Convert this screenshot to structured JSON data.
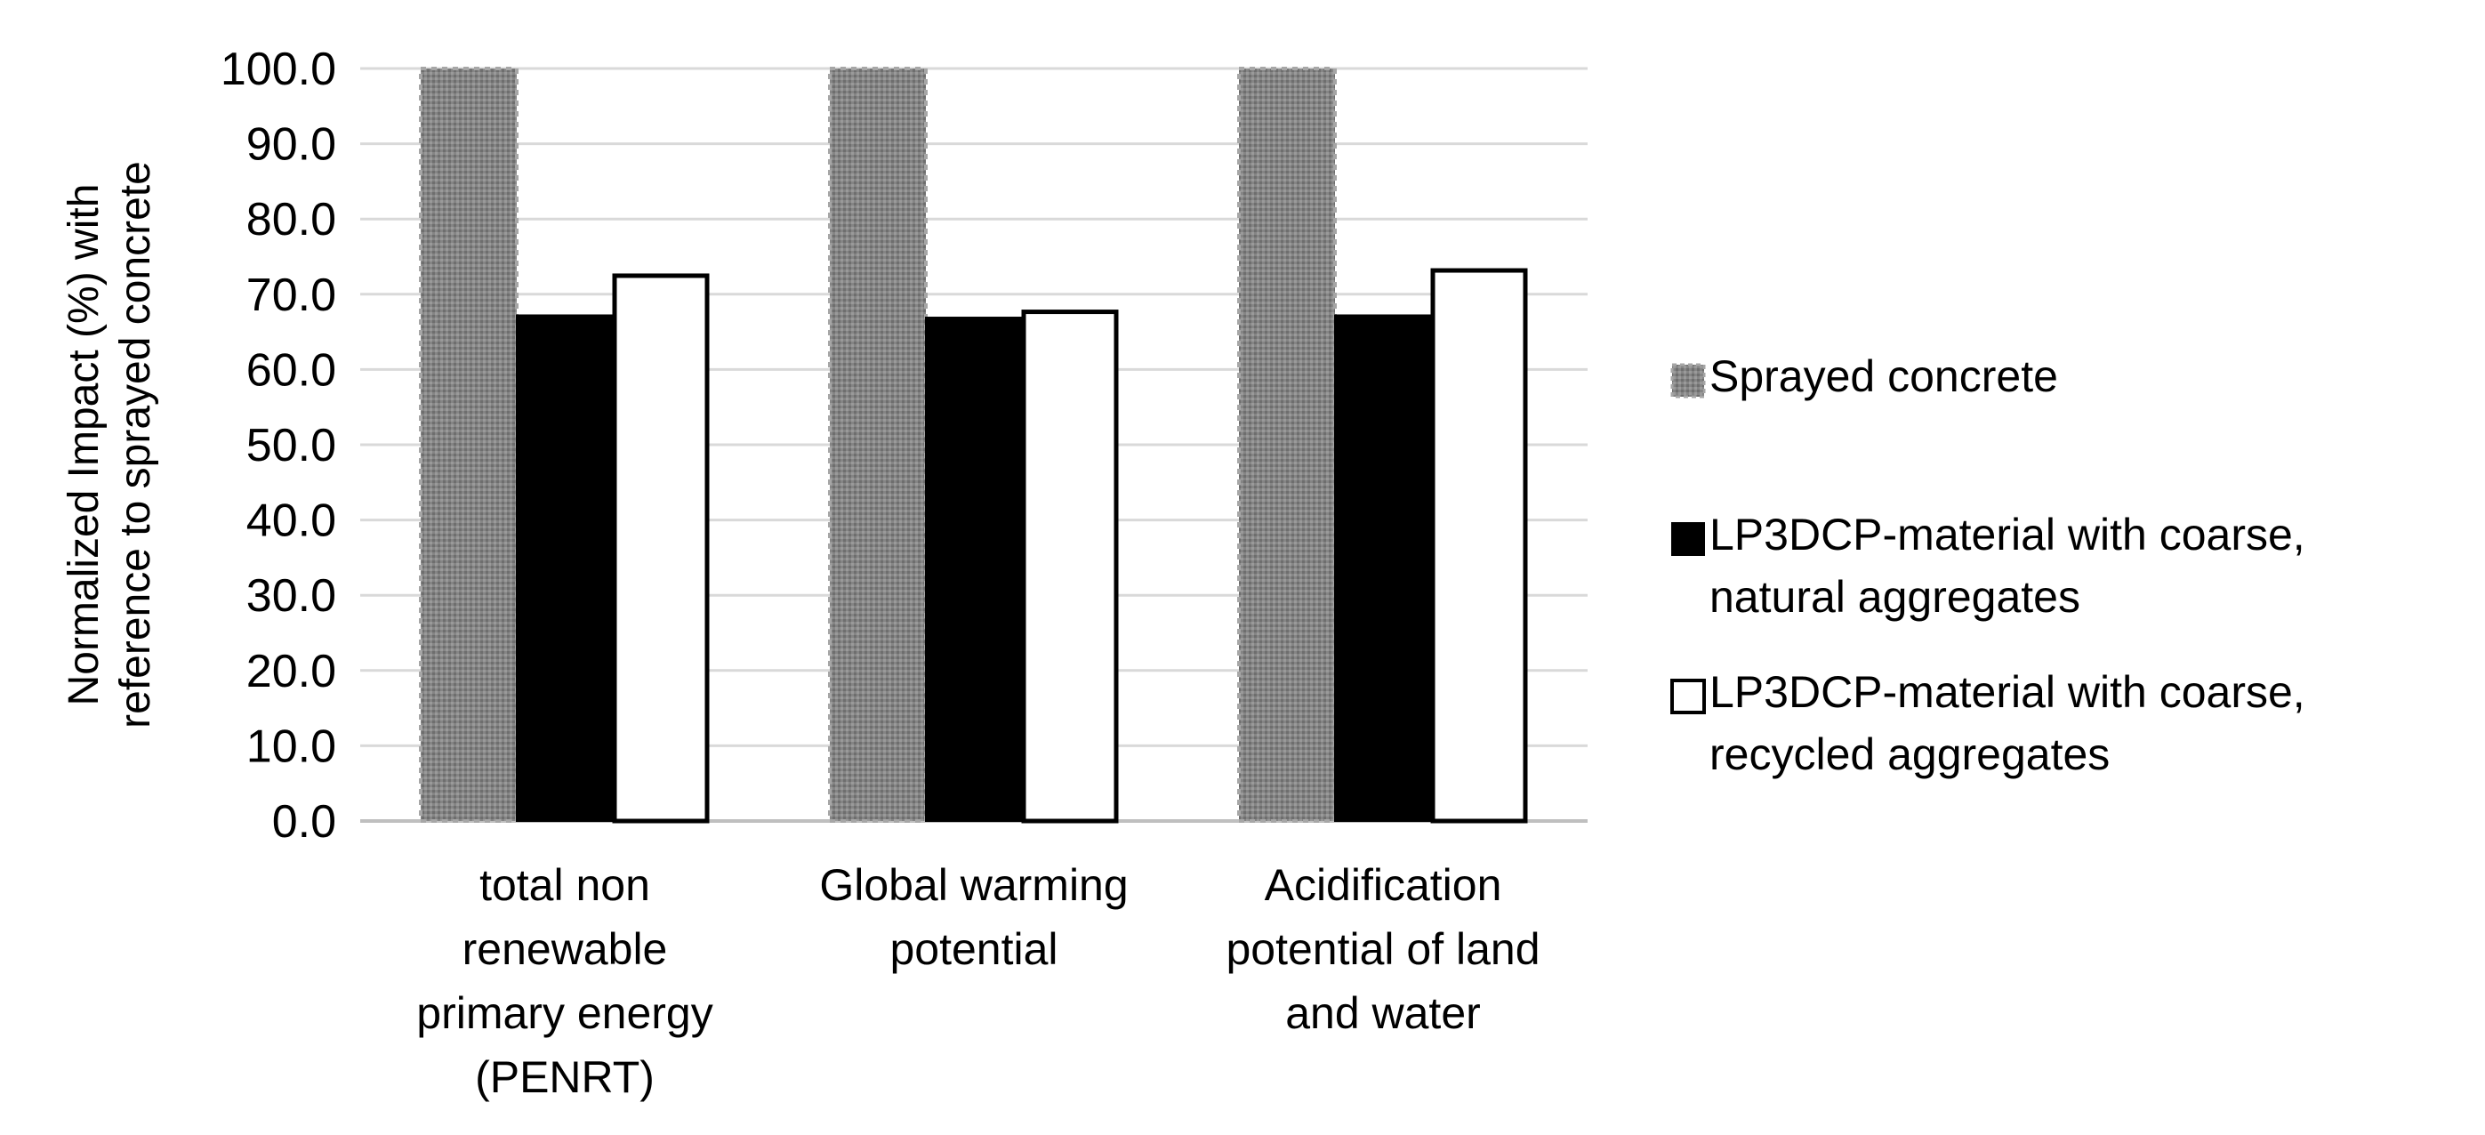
{
  "chart_data": {
    "type": "bar",
    "title": "",
    "xlabel": "",
    "ylabel_lines": [
      "Normalized Impact (%) with",
      "reference to sprayed concrete"
    ],
    "ylim": [
      0,
      100
    ],
    "yticks": [
      0,
      10,
      20,
      30,
      40,
      50,
      60,
      70,
      80,
      90,
      100
    ],
    "tick_labels": [
      "0.0",
      "10.0",
      "20.0",
      "30.0",
      "40.0",
      "50.0",
      "60.0",
      "70.0",
      "80.0",
      "90.0",
      "100.0"
    ],
    "grid": true,
    "legend_position": "right",
    "categories": [
      {
        "lines": [
          "total non",
          "renewable",
          "primary energy",
          "(PENRT)"
        ]
      },
      {
        "lines": [
          "Global warming",
          "potential"
        ]
      },
      {
        "lines": [
          "Acidification",
          "potential of land",
          "and water"
        ]
      }
    ],
    "series": [
      {
        "name": "Sprayed concrete",
        "legend_lines": [
          "Sprayed concrete"
        ],
        "values": [
          100.0,
          100.0,
          100.0
        ],
        "fill": "#808080",
        "stroke": "#a6a6a6",
        "pattern": "dotted-gray"
      },
      {
        "name": "LP3DCP-material with coarse, natural aggregates",
        "legend_lines": [
          "LP3DCP-material with coarse,",
          "natural aggregates"
        ],
        "values": [
          67.2,
          66.9,
          67.2
        ],
        "fill": "#000000",
        "stroke": "#000000",
        "pattern": "solid"
      },
      {
        "name": "LP3DCP-material with coarse, recycled aggregates",
        "legend_lines": [
          "LP3DCP-material with coarse,",
          "recycled aggregates"
        ],
        "values": [
          72.7,
          67.9,
          73.4
        ],
        "fill": "#ffffff",
        "stroke": "#000000",
        "pattern": "outline"
      }
    ],
    "colors": {
      "grid": "#d9d9d9",
      "axis": "#bfbfbf",
      "text": "#000000"
    }
  }
}
